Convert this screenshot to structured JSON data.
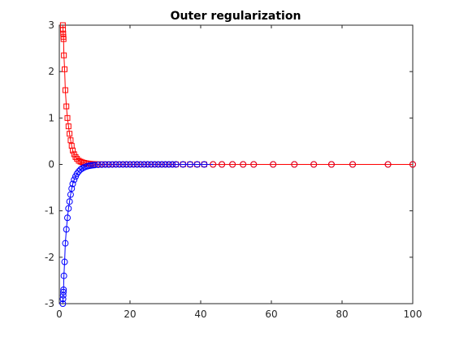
{
  "chart_data": {
    "type": "line",
    "title": "Outer regularization",
    "xlabel": "",
    "ylabel": "",
    "xlim": [
      0,
      100
    ],
    "ylim": [
      -3,
      3
    ],
    "xticks": [
      0,
      20,
      40,
      60,
      80,
      100
    ],
    "yticks": [
      -3,
      -2,
      -1,
      0,
      1,
      2,
      3
    ],
    "xtick_labels": [
      "0",
      "20",
      "40",
      "60",
      "80",
      "100"
    ],
    "ytick_labels": [
      "-3",
      "-2",
      "-1",
      "0",
      "1",
      "2",
      "3"
    ],
    "grid": false,
    "box": true,
    "series": [
      {
        "color": "#ff0000",
        "marker": "square",
        "x": [
          1,
          1.05,
          1.1,
          1.15,
          1.2,
          1.3,
          1.5,
          1.7,
          2.0,
          2.3,
          2.6,
          2.9,
          3.2,
          3.5,
          3.8,
          4.2,
          4.6,
          5.0,
          5.5,
          6.0,
          6.5,
          7.0,
          7.5,
          8.0,
          8.5,
          9.0,
          9.5,
          10,
          11,
          12,
          13,
          14,
          15,
          16,
          17,
          18,
          19,
          20,
          21,
          22,
          23,
          24,
          25,
          26,
          27,
          28,
          29,
          30,
          31,
          32,
          33,
          35,
          37,
          39,
          41
        ],
        "y": [
          3.0,
          2.9,
          2.82,
          2.75,
          2.7,
          2.35,
          2.05,
          1.6,
          1.25,
          1.0,
          0.82,
          0.66,
          0.52,
          0.4,
          0.3,
          0.22,
          0.16,
          0.12,
          0.08,
          0.06,
          0.045,
          0.034,
          0.026,
          0.02,
          0.015,
          0.011,
          0.008,
          0.006,
          0.004,
          0.003,
          0.002,
          0.0015,
          0.001,
          0.0008,
          0.0006,
          0.0005,
          0.0004,
          0.0003,
          0.0002,
          0.0002,
          0.0001,
          0.0001,
          0.0001,
          0.0001,
          0,
          0,
          0,
          0,
          0,
          0,
          0,
          0,
          0,
          0,
          0
        ]
      },
      {
        "color": "#0000ff",
        "marker": "circle",
        "x": [
          1,
          1.05,
          1.1,
          1.15,
          1.2,
          1.3,
          1.5,
          1.7,
          2.0,
          2.3,
          2.6,
          2.9,
          3.2,
          3.5,
          3.8,
          4.2,
          4.6,
          5.0,
          5.5,
          6.0,
          6.5,
          7.0,
          7.5,
          8.0,
          8.5,
          9.0,
          9.5,
          10,
          11,
          12,
          13,
          14,
          15,
          16,
          17,
          18,
          19,
          20,
          21,
          22,
          23,
          24,
          25,
          26,
          27,
          28,
          29,
          30,
          31,
          32,
          33,
          35,
          37,
          39,
          41,
          43.5,
          46,
          49,
          52,
          55,
          60.5,
          66.5,
          72,
          77,
          83,
          93,
          100
        ],
        "y": [
          -3.0,
          -2.9,
          -2.82,
          -2.75,
          -2.7,
          -2.4,
          -2.1,
          -1.7,
          -1.4,
          -1.15,
          -0.95,
          -0.8,
          -0.65,
          -0.52,
          -0.42,
          -0.33,
          -0.26,
          -0.2,
          -0.15,
          -0.11,
          -0.085,
          -0.065,
          -0.05,
          -0.038,
          -0.029,
          -0.022,
          -0.017,
          -0.013,
          -0.008,
          -0.005,
          -0.003,
          -0.002,
          -0.0015,
          -0.001,
          -0.0008,
          -0.0006,
          -0.0004,
          -0.0003,
          -0.0002,
          -0.0002,
          -0.0001,
          -0.0001,
          -0.0001,
          0,
          0,
          0,
          0,
          0,
          0,
          0,
          0,
          0,
          0,
          0,
          0,
          0,
          0,
          0,
          0,
          0,
          0,
          0,
          0,
          0,
          0,
          0,
          0
        ]
      },
      {
        "color": "#ff0000",
        "marker": "circle",
        "x": [
          43.5,
          46,
          49,
          52,
          55,
          60.5,
          66.5,
          72,
          77,
          83,
          93,
          100
        ],
        "y": [
          0,
          0,
          0,
          0,
          0,
          0,
          0,
          0,
          0,
          0,
          0,
          0
        ]
      }
    ]
  }
}
